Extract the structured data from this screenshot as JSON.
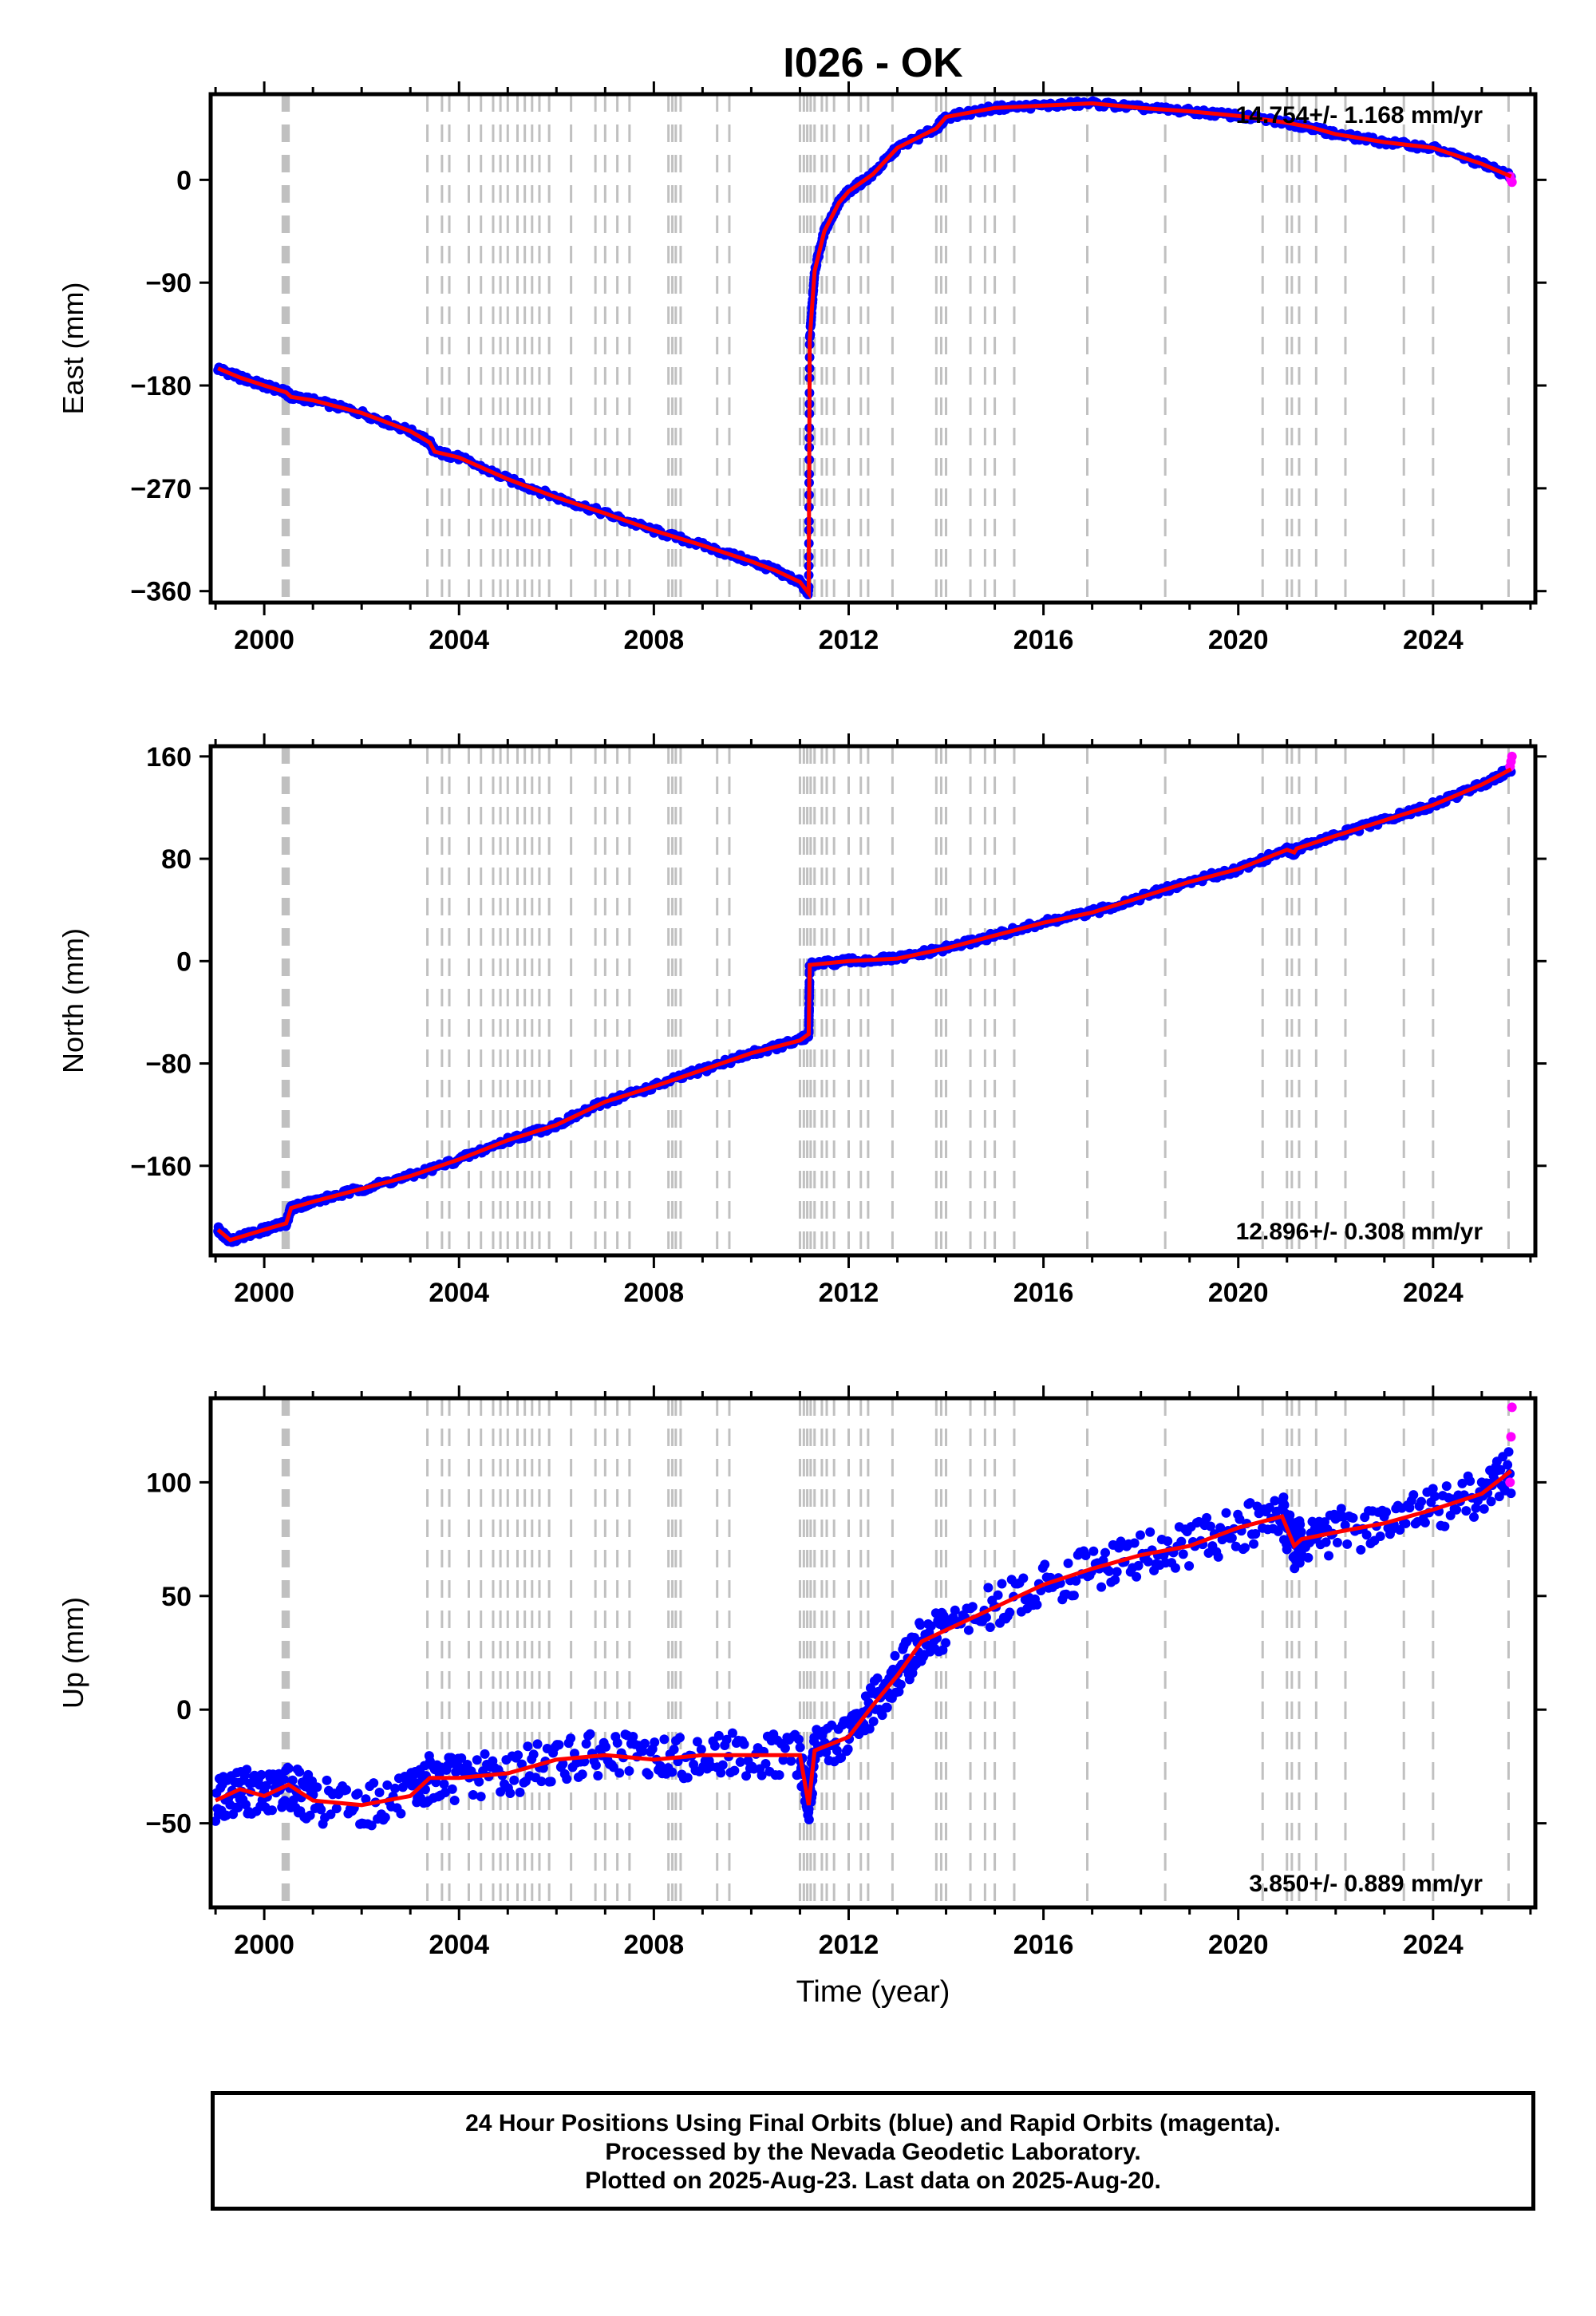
{
  "chart_data": [
    {
      "type": "scatter",
      "title": "I026 - OK",
      "xlabel": "",
      "ylabel": "East (mm)",
      "xlim": [
        1998.9,
        2026.1
      ],
      "ylim": [
        -370,
        75
      ],
      "yticks": [
        -360,
        -270,
        -180,
        -90,
        0
      ],
      "yticklabels": [
        "−360",
        "−270",
        "−180",
        "−90",
        "0"
      ],
      "xticks": [
        2000,
        2004,
        2008,
        2012,
        2016,
        2020,
        2024
      ],
      "annotation": "14.754+/- 1.168 mm/yr",
      "annotation_position": "top-right",
      "series": [
        {
          "name": "Final Orbits",
          "color": "#0000ff",
          "x": [
            1999.05,
            1999.5,
            2000.0,
            2000.45,
            2000.55,
            2001.0,
            2002.0,
            2003.0,
            2003.4,
            2003.5,
            2004.0,
            2005.0,
            2006.0,
            2007.0,
            2008.0,
            2009.0,
            2010.0,
            2010.5,
            2011.0,
            2011.18,
            2011.2,
            2011.3,
            2011.5,
            2011.8,
            2012.0,
            2012.5,
            2013.0,
            2013.8,
            2014.0,
            2015.0,
            2016.0,
            2017.0,
            2018.0,
            2019.0,
            2020.0,
            2021.0,
            2021.5,
            2022.0,
            2023.0,
            2024.0,
            2025.0,
            2025.6
          ],
          "y": [
            -165,
            -173,
            -180,
            -186,
            -190,
            -193,
            -204,
            -220,
            -230,
            -238,
            -243,
            -262,
            -278,
            -292,
            -307,
            -320,
            -334,
            -342,
            -352,
            -362,
            -140,
            -80,
            -45,
            -20,
            -10,
            5,
            28,
            45,
            55,
            63,
            65,
            67,
            63,
            60,
            56,
            50,
            46,
            40,
            33,
            28,
            14,
            3
          ]
        },
        {
          "name": "Rapid Orbits",
          "color": "#ff00ff",
          "x": [
            2025.58,
            2025.6,
            2025.62
          ],
          "y": [
            3,
            0,
            -2
          ]
        }
      ],
      "model": {
        "color": "#ff0000",
        "x": [
          1999.05,
          1999.5,
          2000.0,
          2000.45,
          2000.55,
          2001.0,
          2002.0,
          2003.0,
          2003.4,
          2003.5,
          2004.0,
          2005.0,
          2006.0,
          2007.0,
          2008.0,
          2009.0,
          2010.0,
          2010.5,
          2011.0,
          2011.18,
          2011.2,
          2011.3,
          2011.5,
          2011.8,
          2012.0,
          2012.5,
          2013.0,
          2013.8,
          2014.0,
          2015.0,
          2016.0,
          2017.0,
          2018.0,
          2019.0,
          2020.0,
          2021.0,
          2021.5,
          2022.0,
          2023.0,
          2024.0,
          2025.0,
          2025.6
        ],
        "y": [
          -165,
          -173,
          -180,
          -186,
          -190,
          -193,
          -204,
          -220,
          -230,
          -238,
          -243,
          -262,
          -278,
          -292,
          -307,
          -320,
          -334,
          -342,
          -352,
          -362,
          -140,
          -80,
          -45,
          -20,
          -10,
          5,
          28,
          45,
          55,
          63,
          65,
          67,
          63,
          60,
          56,
          50,
          46,
          40,
          33,
          28,
          14,
          3
        ]
      },
      "grid": false
    },
    {
      "type": "scatter",
      "xlabel": "",
      "ylabel": "North (mm)",
      "xlim": [
        1998.9,
        2026.1
      ],
      "ylim": [
        -230,
        168
      ],
      "yticks": [
        -160,
        -80,
        0,
        80,
        160
      ],
      "yticklabels": [
        "−160",
        "−80",
        "0",
        "80",
        "160"
      ],
      "xticks": [
        2000,
        2004,
        2008,
        2012,
        2016,
        2020,
        2024
      ],
      "annotation": "12.896+/- 0.308 mm/yr",
      "annotation_position": "bottom-right",
      "series": [
        {
          "name": "Final Orbits",
          "color": "#0000ff",
          "x": [
            1999.05,
            1999.3,
            2000.0,
            2000.45,
            2000.55,
            2001.0,
            2002.0,
            2003.0,
            2004.0,
            2005.0,
            2006.0,
            2007.0,
            2008.0,
            2009.0,
            2010.0,
            2011.0,
            2011.18,
            2011.2,
            2012.0,
            2013.0,
            2014.0,
            2015.0,
            2016.0,
            2017.0,
            2018.0,
            2019.0,
            2020.0,
            2021.0,
            2021.15,
            2021.2,
            2022.0,
            2023.0,
            2024.0,
            2025.0,
            2025.6
          ],
          "y": [
            -210,
            -218,
            -210,
            -205,
            -193,
            -188,
            -178,
            -168,
            -155,
            -140,
            -128,
            -110,
            -98,
            -85,
            -72,
            -62,
            -57,
            -3,
            0,
            2,
            10,
            20,
            30,
            38,
            50,
            62,
            72,
            87,
            85,
            88,
            98,
            110,
            122,
            138,
            150
          ]
        },
        {
          "name": "Rapid Orbits",
          "color": "#ff00ff",
          "x": [
            2025.58,
            2025.6,
            2025.62
          ],
          "y": [
            152,
            156,
            160
          ]
        }
      ],
      "model": {
        "color": "#ff0000",
        "x": [
          1999.05,
          1999.3,
          2000.0,
          2000.45,
          2000.55,
          2001.0,
          2002.0,
          2003.0,
          2004.0,
          2005.0,
          2006.0,
          2007.0,
          2008.0,
          2009.0,
          2010.0,
          2011.0,
          2011.18,
          2011.2,
          2012.0,
          2013.0,
          2014.0,
          2015.0,
          2016.0,
          2017.0,
          2018.0,
          2019.0,
          2020.0,
          2021.0,
          2021.15,
          2021.2,
          2022.0,
          2023.0,
          2024.0,
          2025.0,
          2025.6
        ],
        "y": [
          -210,
          -218,
          -210,
          -205,
          -193,
          -188,
          -178,
          -168,
          -155,
          -140,
          -128,
          -110,
          -98,
          -85,
          -72,
          -62,
          -57,
          -3,
          0,
          2,
          10,
          20,
          30,
          38,
          50,
          62,
          72,
          87,
          85,
          88,
          98,
          110,
          122,
          138,
          150
        ]
      },
      "grid": false
    },
    {
      "type": "scatter",
      "xlabel": "Time (year)",
      "ylabel": "Up (mm)",
      "xlim": [
        1998.9,
        2026.1
      ],
      "ylim": [
        -87,
        137
      ],
      "yticks": [
        -50,
        0,
        50,
        100
      ],
      "yticklabels": [
        "−50",
        "0",
        "50",
        "100"
      ],
      "xticks": [
        2000,
        2004,
        2008,
        2012,
        2016,
        2020,
        2024
      ],
      "annotation": "3.850+/- 0.889 mm/yr",
      "annotation_position": "bottom-right",
      "series": [
        {
          "name": "Final Orbits",
          "color": "#0000ff",
          "x": [
            1999.0,
            1999.5,
            2000.0,
            2000.5,
            2001.0,
            2002.0,
            2003.0,
            2003.4,
            2004.0,
            2005.0,
            2006.0,
            2007.0,
            2008.0,
            2009.0,
            2010.0,
            2011.0,
            2011.18,
            2011.3,
            2012.0,
            2012.5,
            2013.0,
            2013.5,
            2014.0,
            2015.0,
            2016.0,
            2017.0,
            2018.0,
            2019.0,
            2020.0,
            2020.9,
            2021.15,
            2021.3,
            2022.0,
            2023.0,
            2024.0,
            2025.0,
            2025.6
          ],
          "y": [
            -40,
            -35,
            -38,
            -33,
            -40,
            -42,
            -38,
            -30,
            -30,
            -28,
            -22,
            -20,
            -22,
            -20,
            -20,
            -20,
            -42,
            -18,
            -12,
            2,
            15,
            30,
            35,
            45,
            55,
            62,
            68,
            72,
            80,
            85,
            72,
            75,
            78,
            82,
            88,
            95,
            105
          ]
        },
        {
          "name": "Rapid Orbits",
          "color": "#ff00ff",
          "x": [
            2025.58,
            2025.6,
            2025.62
          ],
          "y": [
            100,
            120,
            133
          ]
        }
      ],
      "model": {
        "color": "#ff0000",
        "x": [
          1999.0,
          1999.5,
          2000.0,
          2000.5,
          2001.0,
          2002.0,
          2003.0,
          2003.4,
          2004.0,
          2005.0,
          2006.0,
          2007.0,
          2008.0,
          2009.0,
          2010.0,
          2011.0,
          2011.18,
          2011.3,
          2012.0,
          2012.5,
          2013.0,
          2013.5,
          2014.0,
          2015.0,
          2016.0,
          2017.0,
          2018.0,
          2019.0,
          2020.0,
          2020.9,
          2021.15,
          2021.3,
          2022.0,
          2023.0,
          2024.0,
          2025.0,
          2025.6
        ],
        "y": [
          -40,
          -35,
          -38,
          -33,
          -40,
          -42,
          -38,
          -30,
          -30,
          -28,
          -22,
          -20,
          -22,
          -20,
          -20,
          -20,
          -42,
          -18,
          -12,
          2,
          15,
          30,
          35,
          45,
          55,
          62,
          68,
          72,
          80,
          85,
          72,
          75,
          78,
          82,
          88,
          95,
          105
        ]
      },
      "grid": false
    }
  ],
  "event_lines": {
    "color": "#c0c0c0",
    "x": [
      2000.38,
      2000.42,
      2000.46,
      2000.5,
      2003.35,
      2003.65,
      2003.8,
      2004.2,
      2004.45,
      2004.7,
      2004.85,
      2005.0,
      2005.2,
      2005.35,
      2005.5,
      2005.65,
      2005.85,
      2006.3,
      2006.8,
      2007.0,
      2007.25,
      2007.5,
      2008.3,
      2008.38,
      2008.45,
      2008.55,
      2009.3,
      2009.55,
      2011.0,
      2011.08,
      2011.15,
      2011.22,
      2011.3,
      2011.45,
      2011.55,
      2011.7,
      2012.0,
      2012.25,
      2012.4,
      2012.9,
      2013.8,
      2013.9,
      2014.0,
      2014.5,
      2014.8,
      2015.0,
      2015.4,
      2016.9,
      2018.5,
      2020.5,
      2021.0,
      2021.1,
      2021.25,
      2021.6,
      2022.2,
      2023.4,
      2024.0,
      2025.55
    ]
  },
  "caption": {
    "line1": "24 Hour Positions Using Final Orbits (blue) and Rapid Orbits (magenta).",
    "line2": "Processed by the Nevada Geodetic Laboratory.",
    "line3": "Plotted on 2025-Aug-23. Last data on 2025-Aug-20."
  }
}
